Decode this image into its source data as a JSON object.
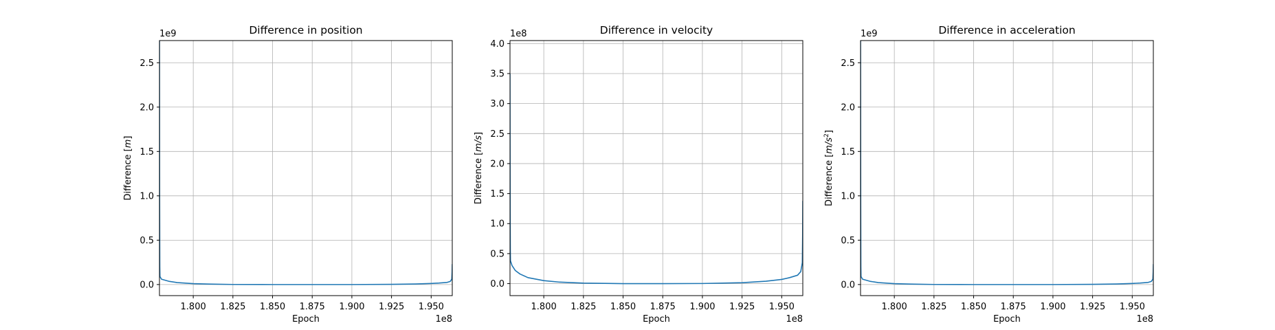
{
  "chart_data": [
    {
      "type": "line",
      "title": "Difference in position",
      "xlabel": "Epoch",
      "ylabel_prefix": "Difference [",
      "ylabel_unit": "m",
      "ylabel_sup": "",
      "ylabel_suffix": "]",
      "x_multiplier": "1e8",
      "y_multiplier": "1e9",
      "xlim": [
        1.7787,
        1.9633
      ],
      "ylim": [
        -0.125,
        2.75
      ],
      "xticks": [
        1.8,
        1.825,
        1.85,
        1.875,
        1.9,
        1.925,
        1.95
      ],
      "xtick_labels": [
        "1.800",
        "1.825",
        "1.850",
        "1.875",
        "1.900",
        "1.925",
        "1.950"
      ],
      "yticks": [
        0,
        0.5,
        1.0,
        1.5,
        2.0,
        2.5
      ],
      "ytick_labels": [
        "0.0",
        "0.5",
        "1.0",
        "1.5",
        "2.0",
        "2.5"
      ],
      "grid": true,
      "color": "#1f77b4",
      "series": [
        {
          "x": [
            1.7787,
            1.7788,
            1.7789,
            1.779,
            1.78,
            1.785,
            1.79,
            1.8,
            1.81,
            1.825,
            1.85,
            1.875,
            1.9,
            1.925,
            1.94,
            1.95,
            1.955,
            1.96,
            1.962,
            1.963,
            1.9632,
            1.9633
          ],
          "y": [
            2.75,
            1.0,
            0.2,
            0.09,
            0.06,
            0.035,
            0.022,
            0.01,
            0.005,
            0.001,
            0.0,
            0.0,
            0.0,
            0.002,
            0.006,
            0.012,
            0.017,
            0.024,
            0.035,
            0.06,
            0.14,
            0.23
          ]
        }
      ]
    },
    {
      "type": "line",
      "title": "Difference in velocity",
      "xlabel": "Epoch",
      "ylabel_prefix": "Difference [",
      "ylabel_unit": "m/s",
      "ylabel_sup": "",
      "ylabel_suffix": "]",
      "x_multiplier": "1e8",
      "y_multiplier": "1e8",
      "xlim": [
        1.7787,
        1.9633
      ],
      "ylim": [
        -0.2,
        4.05
      ],
      "xticks": [
        1.8,
        1.825,
        1.85,
        1.875,
        1.9,
        1.925,
        1.95
      ],
      "xtick_labels": [
        "1.800",
        "1.825",
        "1.850",
        "1.875",
        "1.900",
        "1.925",
        "1.950"
      ],
      "yticks": [
        0,
        0.5,
        1.0,
        1.5,
        2.0,
        2.5,
        3.0,
        3.5,
        4.0
      ],
      "ytick_labels": [
        "0.0",
        "0.5",
        "1.0",
        "1.5",
        "2.0",
        "2.5",
        "3.0",
        "3.5",
        "4.0"
      ],
      "grid": true,
      "color": "#1f77b4",
      "series": [
        {
          "x": [
            1.7787,
            1.7788,
            1.7789,
            1.779,
            1.78,
            1.782,
            1.785,
            1.79,
            1.8,
            1.81,
            1.825,
            1.85,
            1.875,
            1.9,
            1.925,
            1.94,
            1.95,
            1.955,
            1.96,
            1.962,
            1.963,
            1.9632,
            1.9633
          ],
          "y": [
            3.5,
            1.2,
            0.55,
            0.38,
            0.3,
            0.22,
            0.16,
            0.1,
            0.05,
            0.025,
            0.008,
            0.0,
            0.0,
            0.002,
            0.015,
            0.04,
            0.07,
            0.1,
            0.14,
            0.2,
            0.35,
            0.8,
            1.38
          ]
        }
      ]
    },
    {
      "type": "line",
      "title": "Difference in acceleration",
      "xlabel": "Epoch",
      "ylabel_prefix": "Difference [",
      "ylabel_unit": "m/s",
      "ylabel_sup": "2",
      "ylabel_suffix": "]",
      "x_multiplier": "1e8",
      "y_multiplier": "1e9",
      "xlim": [
        1.7787,
        1.9633
      ],
      "ylim": [
        -0.125,
        2.75
      ],
      "xticks": [
        1.8,
        1.825,
        1.85,
        1.875,
        1.9,
        1.925,
        1.95
      ],
      "xtick_labels": [
        "1.800",
        "1.825",
        "1.850",
        "1.875",
        "1.900",
        "1.925",
        "1.950"
      ],
      "yticks": [
        0,
        0.5,
        1.0,
        1.5,
        2.0,
        2.5
      ],
      "ytick_labels": [
        "0.0",
        "0.5",
        "1.0",
        "1.5",
        "2.0",
        "2.5"
      ],
      "grid": true,
      "color": "#1f77b4",
      "series": [
        {
          "x": [
            1.7787,
            1.7788,
            1.7789,
            1.779,
            1.78,
            1.785,
            1.79,
            1.8,
            1.81,
            1.825,
            1.85,
            1.875,
            1.9,
            1.925,
            1.94,
            1.95,
            1.955,
            1.96,
            1.962,
            1.963,
            1.9632,
            1.9633
          ],
          "y": [
            2.75,
            1.0,
            0.2,
            0.09,
            0.06,
            0.035,
            0.022,
            0.01,
            0.005,
            0.001,
            0.0,
            0.0,
            0.0,
            0.002,
            0.006,
            0.012,
            0.017,
            0.024,
            0.035,
            0.06,
            0.14,
            0.23
          ]
        }
      ]
    }
  ]
}
